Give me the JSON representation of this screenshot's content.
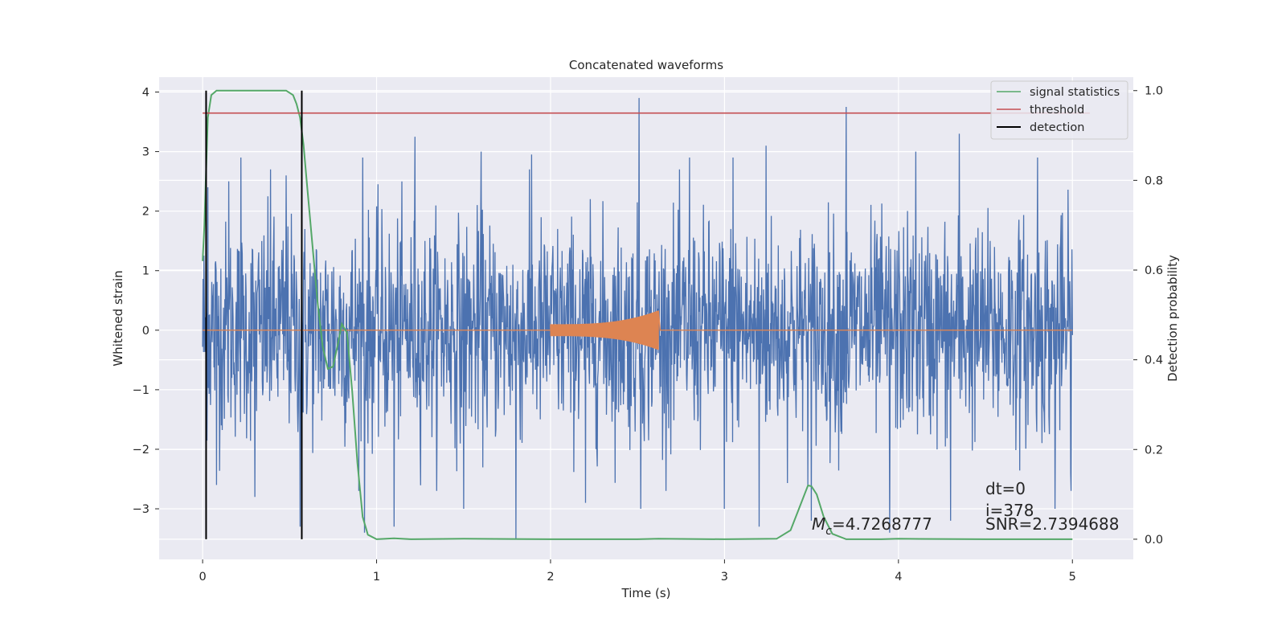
{
  "chart_data": {
    "type": "line",
    "title": "Concatenated waveforms",
    "xlabel": "Time (s)",
    "ylabel": "Whitened strain",
    "ylabel_right": "Detection probability",
    "xlim": [
      -0.25,
      5.35
    ],
    "ylim": [
      -3.85,
      4.25
    ],
    "ylim_right": [
      -0.045,
      1.03
    ],
    "x_ticks": [
      0,
      1,
      2,
      3,
      4,
      5
    ],
    "x_tick_labels": [
      "0",
      "1",
      "2",
      "3",
      "4",
      "5"
    ],
    "y_ticks": [
      4,
      3,
      2,
      1,
      0,
      -1,
      -2,
      -3
    ],
    "y_tick_labels": [
      "4",
      "3",
      "2",
      "1",
      "0",
      "−1",
      "−2",
      "−3"
    ],
    "y2_ticks": [
      1.0,
      0.8,
      0.6,
      0.4,
      0.2,
      0.0
    ],
    "y2_tick_labels": [
      "1.0",
      "0.8",
      "0.6",
      "0.4",
      "0.2",
      "0.0"
    ],
    "grid": true,
    "legend_position": "top-right",
    "legend": [
      {
        "label": "signal statistics",
        "color": "#55a868",
        "kind": "line"
      },
      {
        "label": "threshold",
        "color": "#c44e52",
        "kind": "line"
      },
      {
        "label": "detection",
        "color": "#000000",
        "kind": "line"
      }
    ],
    "series": [
      {
        "name": "whitened strain (noise)",
        "axis": "left",
        "color": "#4c72b0",
        "x_range": [
          0,
          5
        ],
        "spikes": [
          {
            "x": 0.03,
            "y": 2.4
          },
          {
            "x": 0.08,
            "y": -2.6
          },
          {
            "x": 0.15,
            "y": 2.5
          },
          {
            "x": 0.22,
            "y": 2.9
          },
          {
            "x": 0.3,
            "y": -2.8
          },
          {
            "x": 0.39,
            "y": 2.7
          },
          {
            "x": 0.48,
            "y": 2.6
          },
          {
            "x": 0.56,
            "y": -3.3
          },
          {
            "x": 0.57,
            "y": 1.9
          },
          {
            "x": 0.92,
            "y": 2.9
          },
          {
            "x": 0.93,
            "y": -3.4
          },
          {
            "x": 1.1,
            "y": -3.3
          },
          {
            "x": 1.22,
            "y": 3.25
          },
          {
            "x": 1.5,
            "y": -3.0
          },
          {
            "x": 1.6,
            "y": 3.0
          },
          {
            "x": 1.8,
            "y": -3.5
          },
          {
            "x": 1.89,
            "y": 2.95
          },
          {
            "x": 2.2,
            "y": -2.9
          },
          {
            "x": 2.51,
            "y": 3.9
          },
          {
            "x": 2.52,
            "y": -3.0
          },
          {
            "x": 2.8,
            "y": 2.9
          },
          {
            "x": 3.0,
            "y": -3.0
          },
          {
            "x": 3.05,
            "y": 2.9
          },
          {
            "x": 3.2,
            "y": -3.3
          },
          {
            "x": 3.24,
            "y": 3.1
          },
          {
            "x": 3.5,
            "y": -3.2
          },
          {
            "x": 3.7,
            "y": 3.75
          },
          {
            "x": 3.95,
            "y": -3.4
          },
          {
            "x": 4.1,
            "y": 3.0
          },
          {
            "x": 4.3,
            "y": -3.2
          },
          {
            "x": 4.35,
            "y": 3.3
          },
          {
            "x": 4.8,
            "y": 2.9
          },
          {
            "x": 4.9,
            "y": -3.0
          },
          {
            "x": 4.99,
            "y": -2.4
          }
        ]
      },
      {
        "name": "injected waveform",
        "axis": "left",
        "color": "#dd8452",
        "x_range": [
          0,
          5
        ],
        "chirp_start": 2.0,
        "chirp_end": 2.62,
        "amplitude_start": 0.1,
        "amplitude_end": 0.33
      },
      {
        "name": "signal statistics",
        "axis": "right",
        "color": "#55a868",
        "x": [
          0.0,
          0.01,
          0.02,
          0.03,
          0.05,
          0.08,
          0.12,
          0.2,
          0.3,
          0.4,
          0.48,
          0.52,
          0.54,
          0.56,
          0.58,
          0.6,
          0.63,
          0.66,
          0.69,
          0.72,
          0.75,
          0.78,
          0.8,
          0.83,
          0.86,
          0.89,
          0.92,
          0.95,
          1.0,
          1.1,
          1.2,
          1.5,
          2.0,
          2.5,
          2.62,
          3.0,
          3.3,
          3.38,
          3.43,
          3.48,
          3.5,
          3.53,
          3.57,
          3.62,
          3.7,
          3.9,
          4.0,
          4.5,
          5.0
        ],
        "values": [
          0.62,
          0.7,
          0.82,
          0.94,
          0.99,
          1.0,
          1.0,
          1.0,
          1.0,
          1.0,
          1.0,
          0.99,
          0.97,
          0.94,
          0.88,
          0.79,
          0.66,
          0.53,
          0.43,
          0.38,
          0.385,
          0.44,
          0.48,
          0.46,
          0.33,
          0.17,
          0.05,
          0.01,
          0.0,
          0.002,
          0.0,
          0.001,
          0.0,
          0.0,
          0.001,
          0.0,
          0.001,
          0.02,
          0.07,
          0.12,
          0.118,
          0.1,
          0.05,
          0.012,
          0.0,
          0.0,
          0.001,
          0.0,
          0.0
        ]
      },
      {
        "name": "threshold",
        "axis": "right",
        "color": "#c44e52",
        "x": [
          0,
          5.1
        ],
        "values": [
          0.95,
          0.95
        ]
      },
      {
        "name": "detection",
        "axis": "right",
        "color": "#000000",
        "vlines": [
          0.02,
          0.57
        ],
        "ymin": 0.0,
        "ymax": 1.0
      }
    ],
    "annotations": {
      "mc_symbol": "M",
      "mc_subscript": "c",
      "mc_value": "=4.7268777",
      "dt": "dt=0",
      "i": "i=378",
      "snr": "SNR=2.7394688"
    }
  }
}
